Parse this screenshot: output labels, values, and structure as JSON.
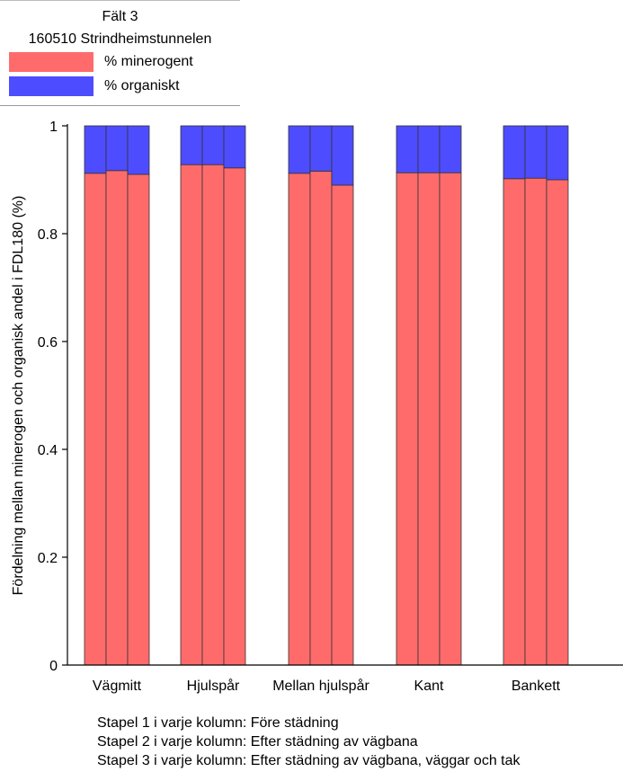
{
  "chart_data": {
    "type": "bar",
    "stacked": true,
    "title": "Fält 3",
    "subtitle": "160510 Strindheimstunnelen",
    "xlabel": "",
    "ylabel": "Fördelning mellan minerogen och organisk andel i FDL180 (%)",
    "ylim": [
      0,
      1
    ],
    "yticks": [
      "0",
      "0.2",
      "0.4",
      "0.6",
      "0.8",
      "1"
    ],
    "ytick_values": [
      0,
      0.2,
      0.4,
      0.6,
      0.8,
      1
    ],
    "grid": false,
    "legend_position": "top-left",
    "categories": [
      "Vägmitt",
      "Hjulspår",
      "Mellan hjulspår",
      "Kant",
      "Bankett"
    ],
    "bars_per_category": 3,
    "series": [
      {
        "name": "% minerogent",
        "color": "#ff6b6b",
        "values": [
          [
            0.912,
            0.917,
            0.91
          ],
          [
            0.928,
            0.928,
            0.922
          ],
          [
            0.912,
            0.916,
            0.89
          ],
          [
            0.913,
            0.913,
            0.913
          ],
          [
            0.902,
            0.903,
            0.9
          ]
        ]
      },
      {
        "name": "% organiskt",
        "color": "#4d4dff",
        "values": [
          [
            0.088,
            0.083,
            0.09
          ],
          [
            0.072,
            0.072,
            0.078
          ],
          [
            0.088,
            0.084,
            0.11
          ],
          [
            0.087,
            0.087,
            0.087
          ],
          [
            0.098,
            0.097,
            0.1
          ]
        ]
      }
    ],
    "notes": [
      "Stapel 1 i varje kolumn: Före städning",
      "Stapel 2 i varje kolumn: Efter städning av vägbana",
      "Stapel 3 i varje kolumn: Efter städning av vägbana, väggar och tak"
    ]
  }
}
